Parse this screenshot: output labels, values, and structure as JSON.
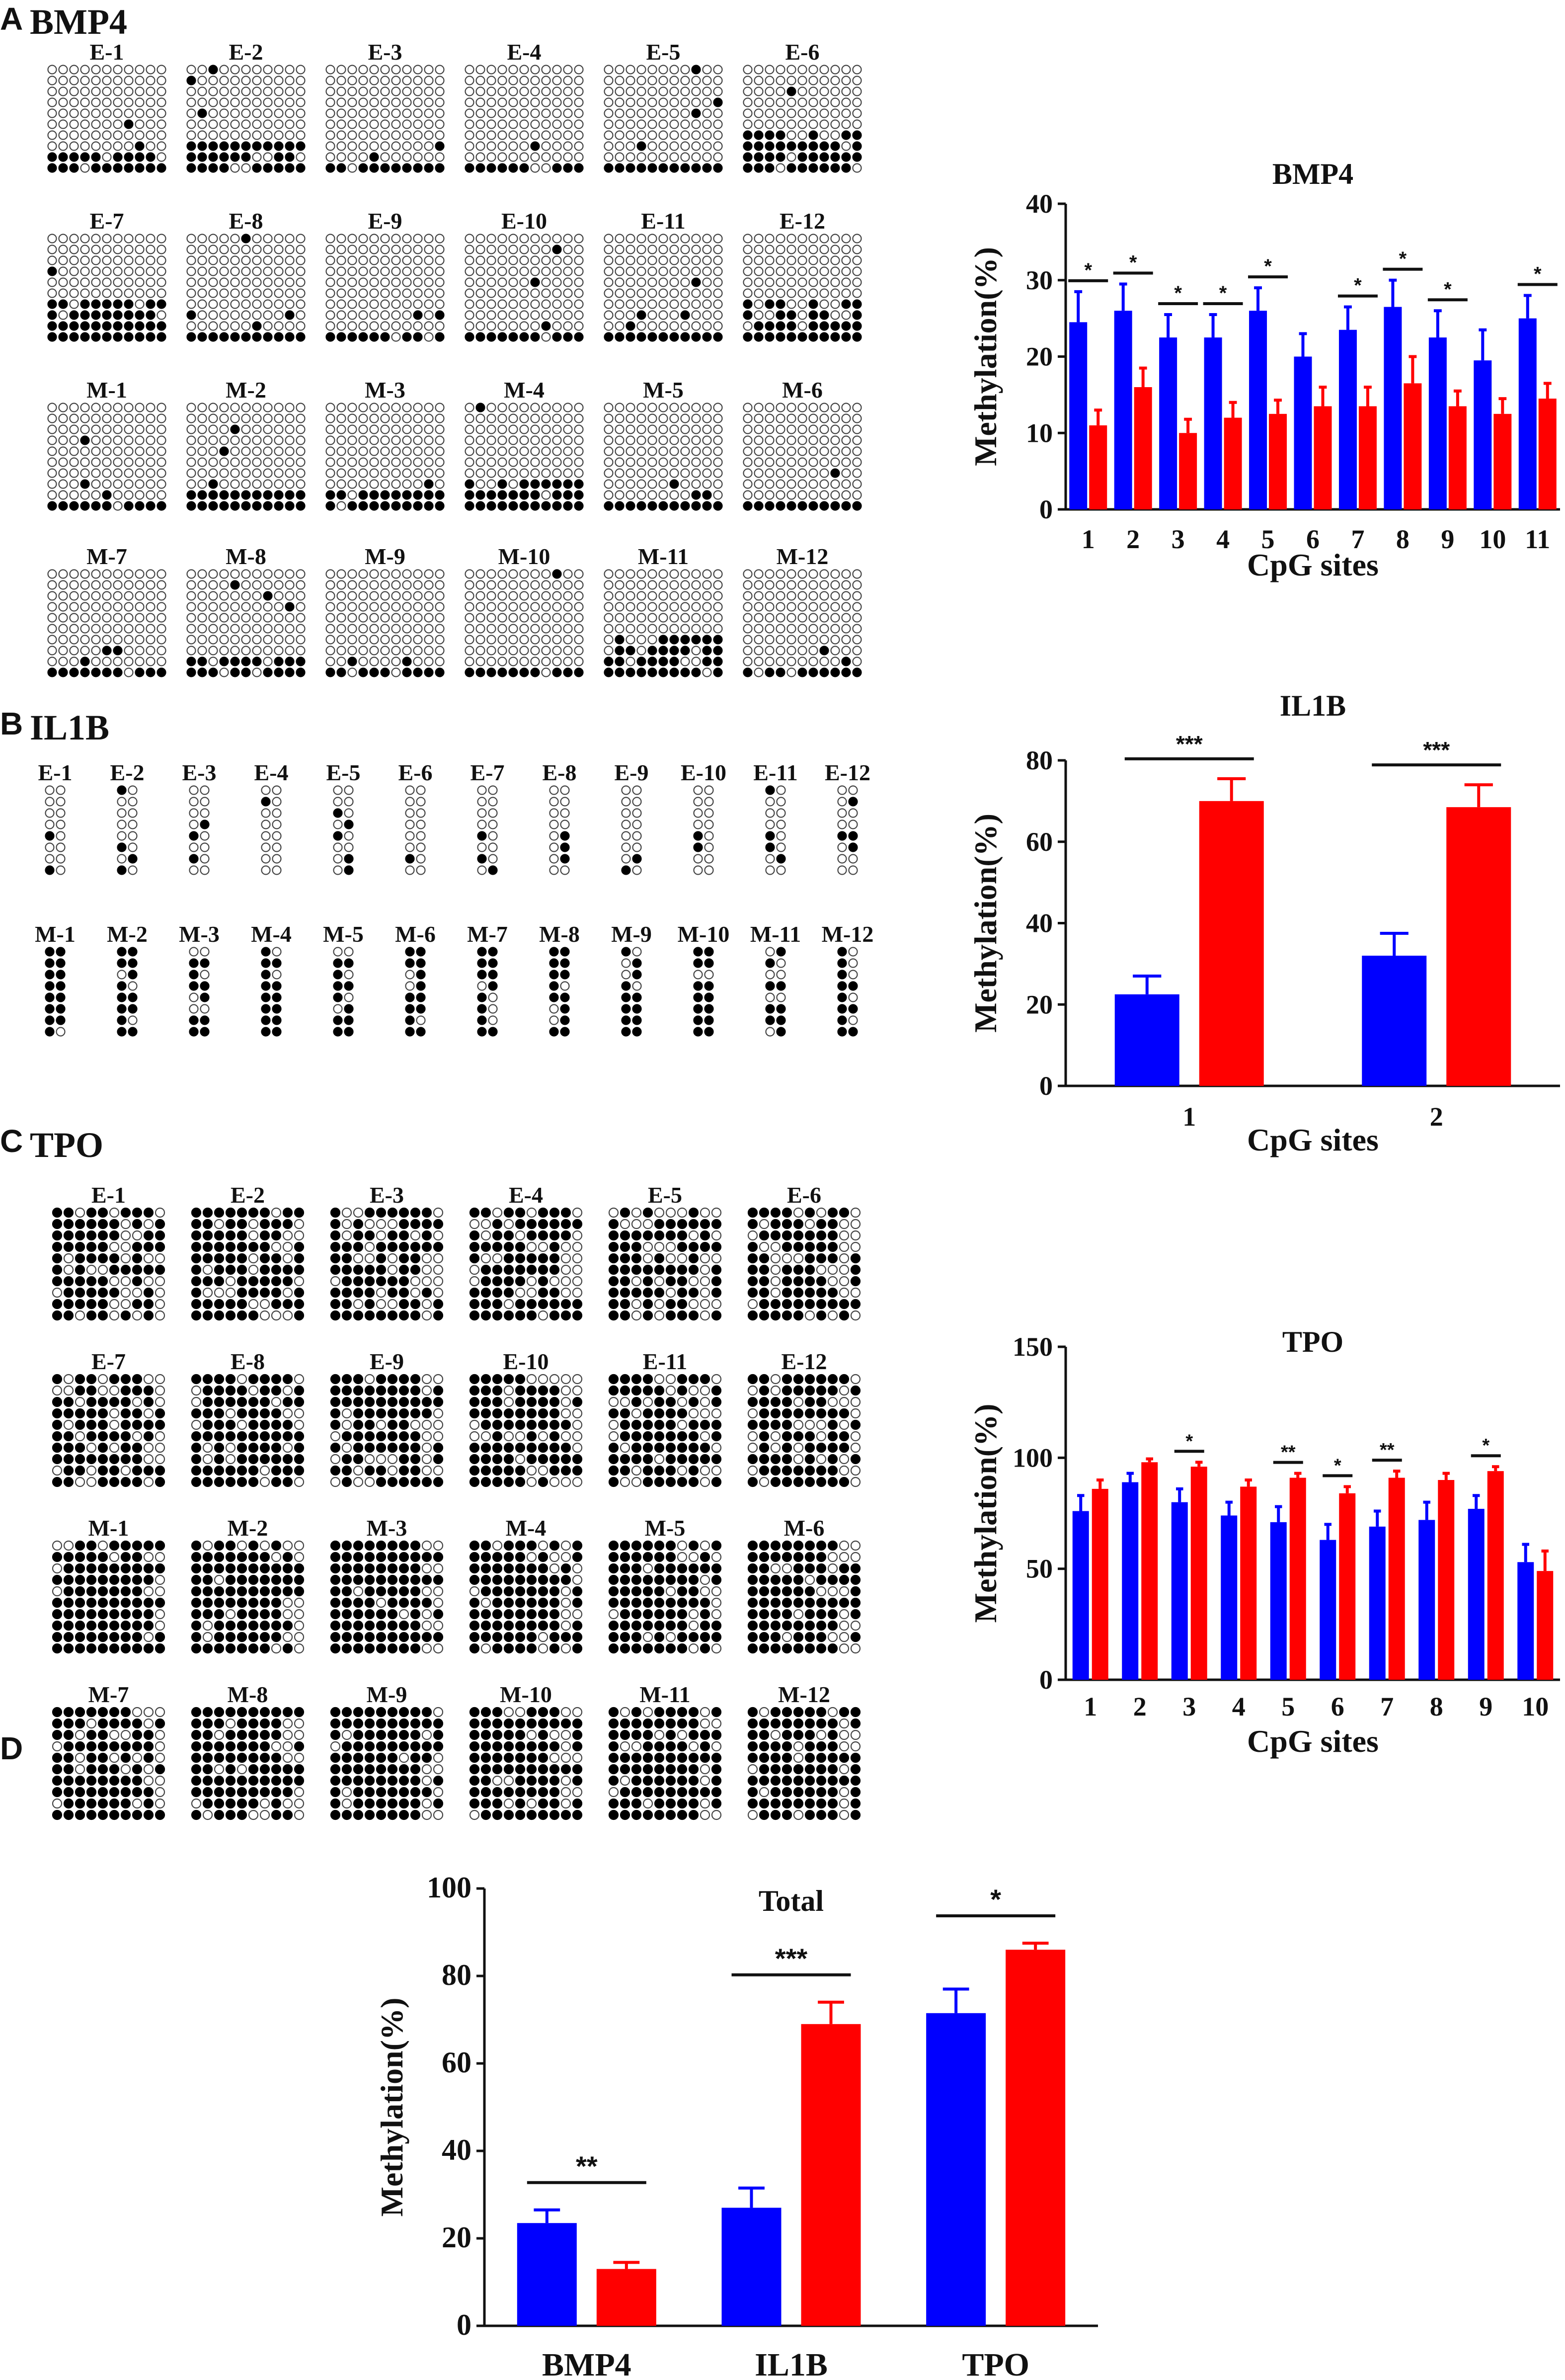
{
  "colors": {
    "E": "#0000ff",
    "M": "#ff0000"
  },
  "panels": {
    "A": {
      "letter": "A",
      "gene": "BMP4"
    },
    "B": {
      "letter": "B",
      "gene": "IL1B"
    },
    "C": {
      "letter": "C",
      "gene": "TPO"
    },
    "D": {
      "letter": "D"
    }
  },
  "samples": {
    "E": [
      "E-1",
      "E-2",
      "E-3",
      "E-4",
      "E-5",
      "E-6",
      "E-7",
      "E-8",
      "E-9",
      "E-10",
      "E-11",
      "E-12"
    ],
    "M": [
      "M-1",
      "M-2",
      "M-3",
      "M-4",
      "M-5",
      "M-6",
      "M-7",
      "M-8",
      "M-9",
      "M-10",
      "M-11",
      "M-12"
    ]
  },
  "chart_data": [
    {
      "id": "bmp4",
      "type": "bar",
      "title": "BMP4",
      "xlabel": "CpG sites",
      "ylabel": "Methylation(%)",
      "ylim": [
        0,
        40
      ],
      "yticks": [
        0,
        10,
        20,
        30,
        40
      ],
      "categories": [
        "1",
        "2",
        "3",
        "4",
        "5",
        "6",
        "7",
        "8",
        "9",
        "10",
        "11"
      ],
      "series": [
        {
          "name": "E",
          "values": [
            24.5,
            26,
            22.5,
            22.5,
            26,
            20,
            23.5,
            26.5,
            22.5,
            19.5,
            25
          ],
          "errors": [
            4,
            3.5,
            3,
            3,
            3,
            3,
            3,
            3.5,
            3.5,
            4,
            3
          ]
        },
        {
          "name": "M",
          "values": [
            11,
            16,
            10,
            12,
            12.5,
            13.5,
            13.5,
            16.5,
            13.5,
            12.5,
            14.5
          ],
          "errors": [
            2,
            2.5,
            1.8,
            2,
            1.8,
            2.5,
            2.5,
            3.5,
            2,
            2,
            2
          ]
        }
      ],
      "significance": [
        {
          "site": 1,
          "label": "*"
        },
        {
          "site": 2,
          "label": "*"
        },
        {
          "site": 3,
          "label": "*"
        },
        {
          "site": 4,
          "label": "*"
        },
        {
          "site": 5,
          "label": "*"
        },
        {
          "site": 7,
          "label": "*"
        },
        {
          "site": 8,
          "label": "*"
        },
        {
          "site": 9,
          "label": "*"
        },
        {
          "site": 11,
          "label": "*"
        }
      ]
    },
    {
      "id": "il1b",
      "type": "bar",
      "title": "IL1B",
      "xlabel": "CpG sites",
      "ylabel": "Methylation(%)",
      "ylim": [
        0,
        80
      ],
      "yticks": [
        0,
        20,
        40,
        60,
        80
      ],
      "categories": [
        "1",
        "2"
      ],
      "series": [
        {
          "name": "E",
          "values": [
            22.5,
            32
          ],
          "errors": [
            4.5,
            5.5
          ]
        },
        {
          "name": "M",
          "values": [
            70,
            68.5
          ],
          "errors": [
            5.5,
            5.5
          ]
        }
      ],
      "significance": [
        {
          "site": 1,
          "label": "***"
        },
        {
          "site": 2,
          "label": "***"
        }
      ]
    },
    {
      "id": "tpo",
      "type": "bar",
      "title": "TPO",
      "xlabel": "CpG sites",
      "ylabel": "Methylation(%)",
      "ylim": [
        0,
        150
      ],
      "yticks": [
        0,
        50,
        100,
        150
      ],
      "categories": [
        "1",
        "2",
        "3",
        "4",
        "5",
        "6",
        "7",
        "8",
        "9",
        "10"
      ],
      "series": [
        {
          "name": "E",
          "values": [
            76,
            89,
            80,
            74,
            71,
            63,
            69,
            72,
            77,
            53
          ],
          "errors": [
            7,
            4,
            6,
            6,
            7,
            7,
            7,
            8,
            6,
            8
          ]
        },
        {
          "name": "M",
          "values": [
            86,
            98,
            96,
            87,
            91,
            84,
            91,
            90,
            94,
            49
          ],
          "errors": [
            4,
            1.5,
            2,
            3,
            2,
            3,
            3,
            3,
            2,
            9
          ]
        }
      ],
      "significance": [
        {
          "site": 3,
          "label": "*"
        },
        {
          "site": 5,
          "label": "**"
        },
        {
          "site": 6,
          "label": "*"
        },
        {
          "site": 7,
          "label": "**"
        },
        {
          "site": 9,
          "label": "*"
        }
      ]
    },
    {
      "id": "total",
      "type": "bar",
      "title": "Total",
      "xlabel": "",
      "ylabel": "Methylation(%)",
      "ylim": [
        0,
        100
      ],
      "yticks": [
        0,
        20,
        40,
        60,
        80,
        100
      ],
      "categories": [
        "BMP4",
        "IL1B",
        "TPO"
      ],
      "series": [
        {
          "name": "E",
          "values": [
            23.5,
            27,
            71.5
          ],
          "errors": [
            3,
            4.5,
            5.5
          ]
        },
        {
          "name": "M",
          "values": [
            13,
            69,
            86
          ],
          "errors": [
            1.5,
            5,
            1.5
          ]
        }
      ],
      "significance": [
        {
          "site": 1,
          "label": "**"
        },
        {
          "site": 2,
          "label": "***"
        },
        {
          "site": 3,
          "label": "*"
        }
      ]
    }
  ]
}
